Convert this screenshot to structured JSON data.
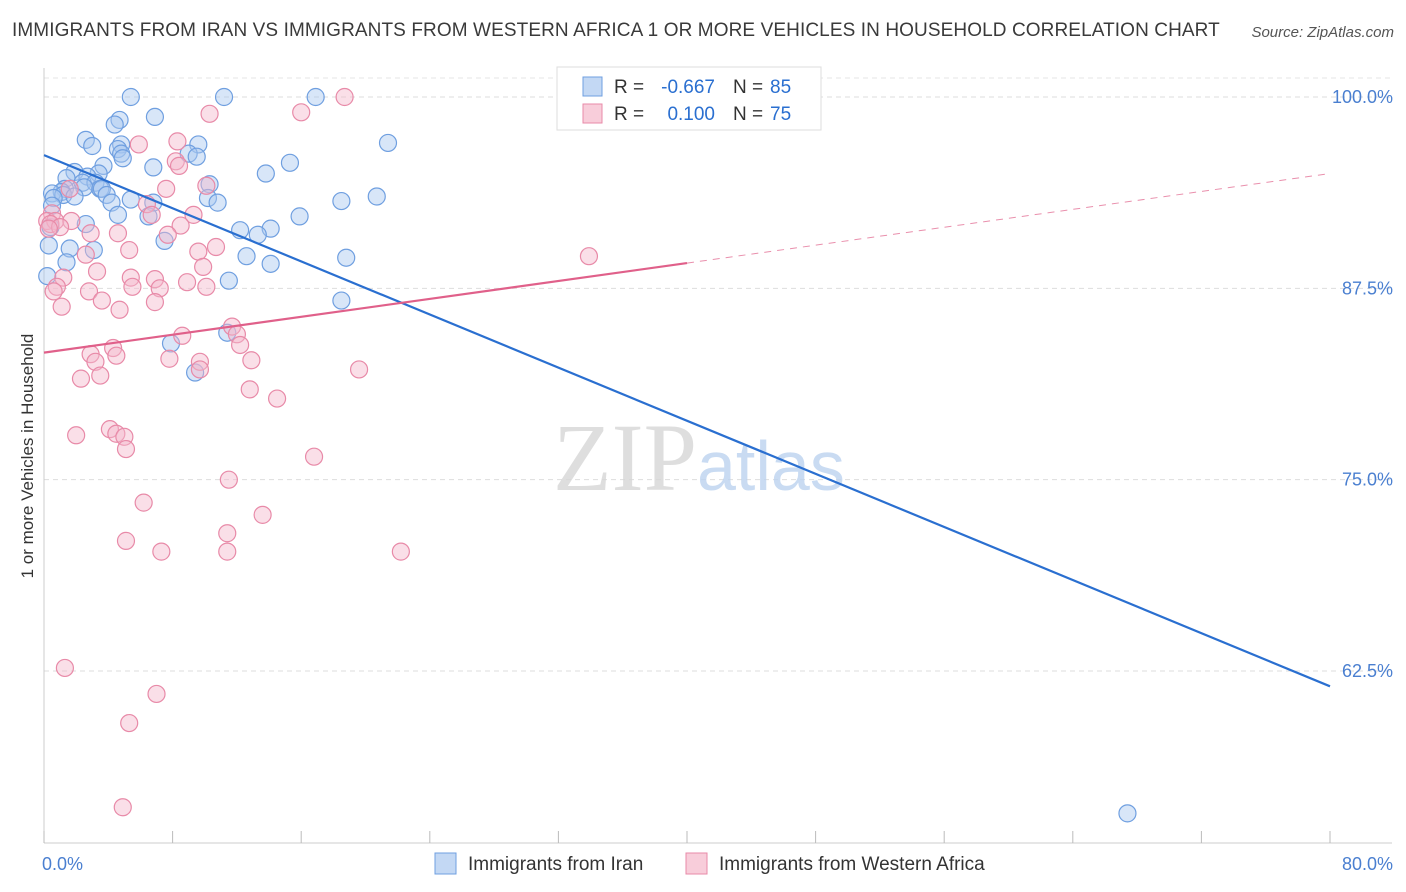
{
  "chart_data": {
    "type": "scatter",
    "title": "IMMIGRANTS FROM IRAN VS IMMIGRANTS FROM WESTERN AFRICA 1 OR MORE VEHICLES IN HOUSEHOLD CORRELATION CHART",
    "source": "Source: ZipAtlas.com",
    "xlabel": "",
    "ylabel": "1 or more Vehicles in Household",
    "xlim": [
      0,
      80
    ],
    "ylim": [
      52,
      102
    ],
    "x_tick_labels": [
      "0.0%",
      "80.0%"
    ],
    "y_ticks": [
      {
        "value": 100,
        "label": "100.0%"
      },
      {
        "value": 87.5,
        "label": "87.5%"
      },
      {
        "value": 75,
        "label": "75.0%"
      },
      {
        "value": 62.5,
        "label": "62.5%"
      }
    ],
    "watermark": {
      "part1": "ZIP",
      "part2": "atlas"
    },
    "legend_stats": [
      {
        "r_label": "R =",
        "r_value": "-0.667",
        "n_label": "N =",
        "n_value": "85"
      },
      {
        "r_label": "R =",
        "r_value": "0.100",
        "n_label": "N =",
        "n_value": "75"
      }
    ],
    "series": [
      {
        "name": "Immigrants from Iran",
        "color": "#6f9fe0",
        "fill": "#a9c8f0",
        "line_color": "#2a6fd0",
        "trend": {
          "x0": 0,
          "y0": 96.2,
          "x1": 80,
          "y1": 61.5,
          "solid_to": 80
        },
        "points": [
          [
            5.4,
            100
          ],
          [
            11.2,
            100
          ],
          [
            16.9,
            100
          ],
          [
            6.9,
            98.7
          ],
          [
            4.7,
            98.5
          ],
          [
            4.4,
            98.2
          ],
          [
            2.6,
            97.2
          ],
          [
            21.4,
            97.0
          ],
          [
            4.8,
            96.9
          ],
          [
            9.6,
            96.9
          ],
          [
            3.0,
            96.8
          ],
          [
            4.6,
            96.6
          ],
          [
            4.8,
            96.3
          ],
          [
            9.0,
            96.3
          ],
          [
            9.5,
            96.1
          ],
          [
            4.9,
            96.0
          ],
          [
            15.3,
            95.7
          ],
          [
            3.7,
            95.5
          ],
          [
            6.8,
            95.4
          ],
          [
            1.9,
            95.1
          ],
          [
            3.4,
            95.0
          ],
          [
            13.8,
            95.0
          ],
          [
            2.7,
            94.8
          ],
          [
            1.4,
            94.7
          ],
          [
            2.4,
            94.4
          ],
          [
            3.2,
            94.4
          ],
          [
            10.3,
            94.3
          ],
          [
            2.5,
            94.1
          ],
          [
            1.3,
            94.0
          ],
          [
            3.5,
            94.0
          ],
          [
            3.6,
            94.0
          ],
          [
            1.1,
            93.8
          ],
          [
            0.5,
            93.7
          ],
          [
            1.2,
            93.6
          ],
          [
            3.9,
            93.6
          ],
          [
            1.9,
            93.5
          ],
          [
            20.7,
            93.5
          ],
          [
            0.6,
            93.4
          ],
          [
            10.2,
            93.4
          ],
          [
            5.4,
            93.3
          ],
          [
            18.5,
            93.2
          ],
          [
            4.2,
            93.1
          ],
          [
            6.8,
            93.1
          ],
          [
            10.8,
            93.1
          ],
          [
            0.5,
            92.9
          ],
          [
            4.6,
            92.3
          ],
          [
            6.5,
            92.2
          ],
          [
            15.9,
            92.2
          ],
          [
            2.6,
            91.7
          ],
          [
            0.4,
            91.5
          ],
          [
            12.2,
            91.3
          ],
          [
            14.1,
            91.4
          ],
          [
            13.3,
            91.0
          ],
          [
            7.5,
            90.6
          ],
          [
            0.3,
            90.3
          ],
          [
            1.6,
            90.1
          ],
          [
            3.1,
            90.0
          ],
          [
            12.6,
            89.6
          ],
          [
            14.1,
            89.1
          ],
          [
            18.8,
            89.5
          ],
          [
            1.4,
            89.2
          ],
          [
            11.5,
            88.0
          ],
          [
            18.5,
            86.7
          ],
          [
            7.9,
            83.9
          ],
          [
            11.4,
            84.6
          ],
          [
            9.4,
            82.0
          ],
          [
            67.4,
            53.2
          ],
          [
            0.2,
            88.3
          ]
        ]
      },
      {
        "name": "Immigrants from Western Africa",
        "color": "#e88aa8",
        "fill": "#f5b8cb",
        "line_color": "#e0608a",
        "trend": {
          "x0": 0,
          "y0": 83.3,
          "x1": 80,
          "y1": 95.0,
          "solid_to": 40
        },
        "points": [
          [
            18.7,
            100
          ],
          [
            10.3,
            98.9
          ],
          [
            16.0,
            99.0
          ],
          [
            8.3,
            97.1
          ],
          [
            5.9,
            96.9
          ],
          [
            8.2,
            95.8
          ],
          [
            8.4,
            95.5
          ],
          [
            10.1,
            94.2
          ],
          [
            7.6,
            94.0
          ],
          [
            1.6,
            94.0
          ],
          [
            6.4,
            93.0
          ],
          [
            0.5,
            92.4
          ],
          [
            6.7,
            92.3
          ],
          [
            9.3,
            92.3
          ],
          [
            0.2,
            91.9
          ],
          [
            0.7,
            91.9
          ],
          [
            1.7,
            91.9
          ],
          [
            0.4,
            91.7
          ],
          [
            1.0,
            91.5
          ],
          [
            0.3,
            91.4
          ],
          [
            8.5,
            91.6
          ],
          [
            2.9,
            91.1
          ],
          [
            4.6,
            91.1
          ],
          [
            7.7,
            91.0
          ],
          [
            10.7,
            90.2
          ],
          [
            5.3,
            90.0
          ],
          [
            9.6,
            89.9
          ],
          [
            2.6,
            89.7
          ],
          [
            33.9,
            89.6
          ],
          [
            9.9,
            88.9
          ],
          [
            3.3,
            88.6
          ],
          [
            5.4,
            88.2
          ],
          [
            1.2,
            88.2
          ],
          [
            6.9,
            88.1
          ],
          [
            8.9,
            87.9
          ],
          [
            5.5,
            87.6
          ],
          [
            10.1,
            87.6
          ],
          [
            0.8,
            87.6
          ],
          [
            7.2,
            87.5
          ],
          [
            0.6,
            87.3
          ],
          [
            2.8,
            87.3
          ],
          [
            3.6,
            86.7
          ],
          [
            6.9,
            86.6
          ],
          [
            1.1,
            86.3
          ],
          [
            4.7,
            86.1
          ],
          [
            11.7,
            85.0
          ],
          [
            12.0,
            84.5
          ],
          [
            8.6,
            84.4
          ],
          [
            12.2,
            83.8
          ],
          [
            4.3,
            83.6
          ],
          [
            2.9,
            83.2
          ],
          [
            4.5,
            83.1
          ],
          [
            7.8,
            82.9
          ],
          [
            12.9,
            82.8
          ],
          [
            9.7,
            82.7
          ],
          [
            3.2,
            82.7
          ],
          [
            19.6,
            82.2
          ],
          [
            9.7,
            82.2
          ],
          [
            3.5,
            81.8
          ],
          [
            2.3,
            81.6
          ],
          [
            12.8,
            80.9
          ],
          [
            14.5,
            80.3
          ],
          [
            4.1,
            78.3
          ],
          [
            4.5,
            78.0
          ],
          [
            2.0,
            77.9
          ],
          [
            5.0,
            77.8
          ],
          [
            5.1,
            77.0
          ],
          [
            16.8,
            76.5
          ],
          [
            11.5,
            75.0
          ],
          [
            6.2,
            73.5
          ],
          [
            13.6,
            72.7
          ],
          [
            11.4,
            71.5
          ],
          [
            5.1,
            71.0
          ],
          [
            7.3,
            70.3
          ],
          [
            11.4,
            70.3
          ],
          [
            22.2,
            70.3
          ],
          [
            1.3,
            62.7
          ],
          [
            7.0,
            61.0
          ],
          [
            5.3,
            59.1
          ],
          [
            4.9,
            53.6
          ]
        ]
      }
    ]
  }
}
